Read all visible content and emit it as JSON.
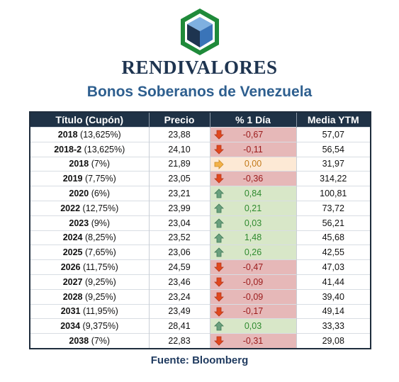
{
  "header": {
    "brand": "RENDIVALORES",
    "subtitle": "Bonos Soberanos de Venezuela",
    "logo_icon": "cube-hexagon-logo-icon",
    "colors": {
      "brand": "#1e3450",
      "subtitle": "#2e5f8f",
      "logo_green": "#1f8a3a",
      "logo_blue": "#4a86c5"
    }
  },
  "table": {
    "columns": [
      "Título (Cupón)",
      "Precio",
      "% 1 Día",
      "Media YTM"
    ],
    "rows": [
      {
        "year": "2018",
        "coupon": "(13,625%)",
        "price": "23,88",
        "change": "-0,67",
        "trend": "down",
        "ytm": "57,07"
      },
      {
        "year": "2018-2",
        "coupon": "(13,625%)",
        "price": "24,10",
        "change": "-0,11",
        "trend": "down",
        "ytm": "56,54"
      },
      {
        "year": "2018",
        "coupon": "(7%)",
        "price": "21,89",
        "change": "0,00",
        "trend": "flat",
        "ytm": "31,97"
      },
      {
        "year": "2019",
        "coupon": "(7,75%)",
        "price": "23,05",
        "change": "-0,36",
        "trend": "down",
        "ytm": "314,22"
      },
      {
        "year": "2020",
        "coupon": "(6%)",
        "price": "23,21",
        "change": "0,84",
        "trend": "up",
        "ytm": "100,81"
      },
      {
        "year": "2022",
        "coupon": "(12,75%)",
        "price": "23,99",
        "change": "0,21",
        "trend": "up",
        "ytm": "73,72"
      },
      {
        "year": "2023",
        "coupon": "(9%)",
        "price": "23,04",
        "change": "0,03",
        "trend": "up",
        "ytm": "56,21"
      },
      {
        "year": "2024",
        "coupon": "(8,25%)",
        "price": "23,52",
        "change": "1,48",
        "trend": "up",
        "ytm": "45,68"
      },
      {
        "year": "2025",
        "coupon": "(7,65%)",
        "price": "23,06",
        "change": "0,26",
        "trend": "up",
        "ytm": "42,55"
      },
      {
        "year": "2026",
        "coupon": "(11,75%)",
        "price": "24,59",
        "change": "-0,47",
        "trend": "down",
        "ytm": "47,03"
      },
      {
        "year": "2027",
        "coupon": "(9,25%)",
        "price": "23,46",
        "change": "-0,09",
        "trend": "down",
        "ytm": "41,44"
      },
      {
        "year": "2028",
        "coupon": "(9,25%)",
        "price": "23,24",
        "change": "-0,09",
        "trend": "down",
        "ytm": "39,40"
      },
      {
        "year": "2031",
        "coupon": "(11,95%)",
        "price": "23,49",
        "change": "-0,17",
        "trend": "down",
        "ytm": "49,14"
      },
      {
        "year": "2034",
        "coupon": "(9,375%)",
        "price": "28,41",
        "change": "0,03",
        "trend": "up",
        "ytm": "33,33"
      },
      {
        "year": "2038",
        "coupon": "(7%)",
        "price": "22,83",
        "change": "-0,31",
        "trend": "down",
        "ytm": "29,08"
      }
    ],
    "colors": {
      "header_bg": "#1f3246",
      "down_bg": "#e6b8b8",
      "up_bg": "#d8e7c8",
      "flat_bg": "#fde9d5"
    }
  },
  "footer": {
    "source": "Fuente: Bloomberg"
  }
}
